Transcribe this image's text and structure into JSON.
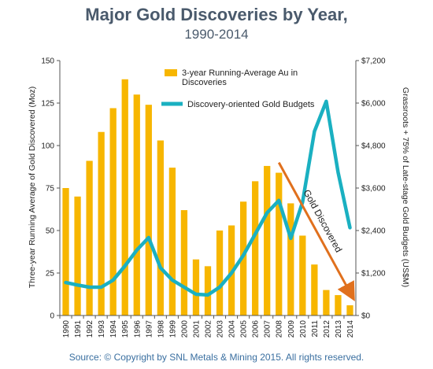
{
  "chart_data": {
    "type": "bar",
    "title": "Major Gold Discoveries by Year,",
    "subtitle": "1990-2014",
    "categories": [
      "1990",
      "1991",
      "1992",
      "1993",
      "1994",
      "1995",
      "1996",
      "1997",
      "1998",
      "1999",
      "2000",
      "2001",
      "2002",
      "2003",
      "2004",
      "2005",
      "2006",
      "2007",
      "2008",
      "2009",
      "2010",
      "2011",
      "2012",
      "2013",
      "2014"
    ],
    "series": [
      {
        "name": "3-year Running-Average Au in Discoveries",
        "type": "bar",
        "axis": "left",
        "color": "#f7b600",
        "values": [
          75,
          70,
          91,
          108,
          122,
          139,
          130,
          124,
          103,
          87,
          62,
          33,
          29,
          50,
          53,
          67,
          79,
          88,
          84,
          66,
          47,
          30,
          15,
          12,
          6
        ]
      },
      {
        "name": "Discovery-oriented Gold Budgets",
        "type": "line",
        "axis": "right",
        "color": "#1ab0c1",
        "values": [
          930,
          860,
          800,
          800,
          1000,
          1400,
          1850,
          2200,
          1350,
          1000,
          800,
          600,
          580,
          800,
          1200,
          1700,
          2300,
          2900,
          3250,
          2180,
          3200,
          5200,
          6050,
          4050,
          2480
        ]
      }
    ],
    "ylabel": "Three-year Running Average of Gold Discovered (Moz)",
    "ylabel_right": "Grassroots + 75% of Late-stage Gold Budgets (US$M)",
    "ylim": [
      0,
      150
    ],
    "ylim_right": [
      0,
      7200
    ],
    "yticks": [
      "0",
      "25",
      "50",
      "75",
      "100",
      "125",
      "150"
    ],
    "yticks_right": [
      "$0",
      "$1,200",
      "$2,400",
      "$3,600",
      "$4,800",
      "$6,000",
      "$7,200"
    ],
    "grid": false,
    "legend_position": "top-center",
    "annotation": {
      "text": "Gold Discovered",
      "arrow_color": "#e0701d",
      "from": [
        "2008",
        90
      ],
      "to": [
        "2014",
        12
      ]
    }
  },
  "footer": {
    "source": "Source:  © Copyright by SNL Metals & Mining 2015.  All rights reserved."
  }
}
